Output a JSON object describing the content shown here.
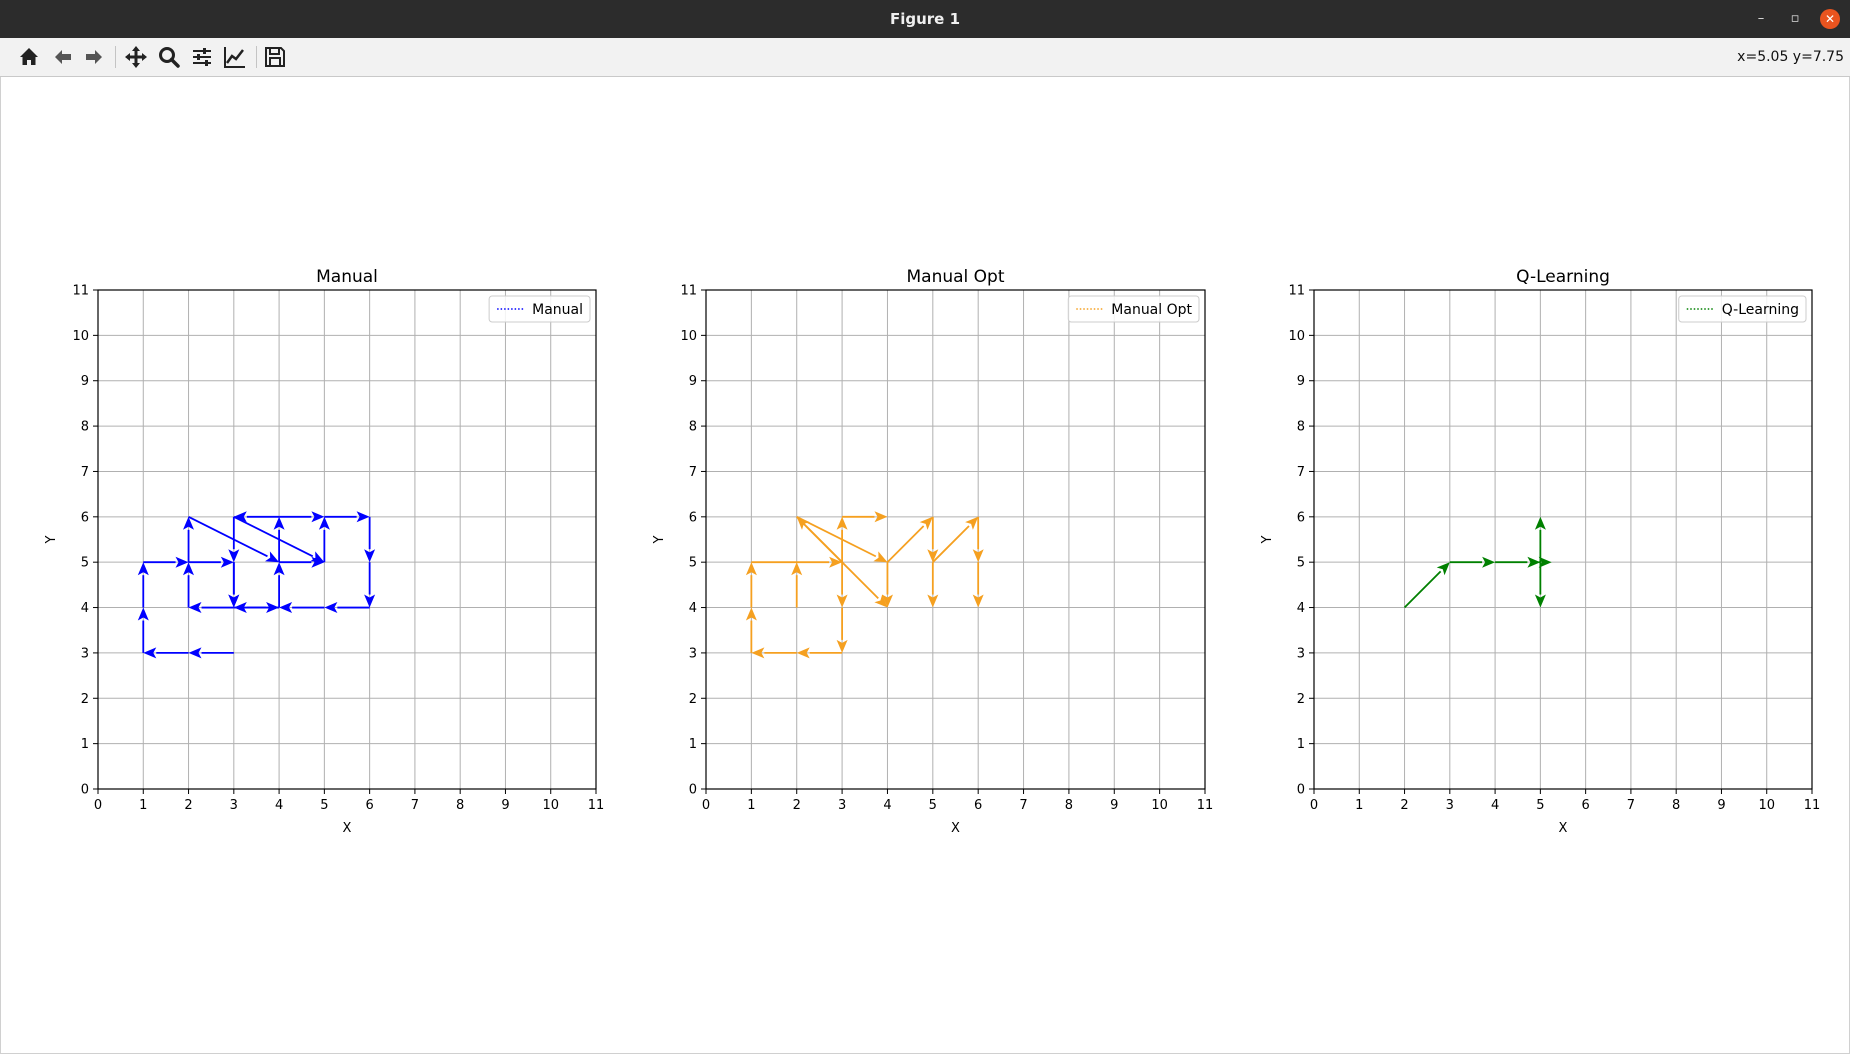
{
  "window": {
    "title": "Figure 1",
    "minimize_glyph": "–",
    "maximize_glyph": "▫",
    "close_glyph": "✕"
  },
  "toolbar": {
    "buttons": [
      "home-icon",
      "back-icon",
      "forward-icon",
      "pan-icon",
      "zoom-icon",
      "configure-subplots-icon",
      "edit-axis-icon",
      "save-icon"
    ],
    "coordinates": "x=5.05 y=7.75"
  },
  "chart_data": [
    {
      "type": "quiver",
      "title": "Manual",
      "xlabel": "X",
      "ylabel": "Y",
      "xlim": [
        0,
        11
      ],
      "ylim": [
        0,
        11
      ],
      "xticks": [
        "0",
        "1",
        "2",
        "3",
        "4",
        "5",
        "6",
        "7",
        "8",
        "9",
        "10",
        "11"
      ],
      "yticks": [
        "0",
        "1",
        "2",
        "3",
        "4",
        "5",
        "6",
        "7",
        "8",
        "9",
        "10",
        "11"
      ],
      "grid": true,
      "legend": {
        "label": "Manual",
        "position": "top-right"
      },
      "color": "#0000ff",
      "line_style": "dotted",
      "segments": [
        [
          [
            3,
            3
          ],
          [
            2,
            3
          ]
        ],
        [
          [
            2,
            3
          ],
          [
            1,
            3
          ]
        ],
        [
          [
            1,
            3
          ],
          [
            1,
            4
          ]
        ],
        [
          [
            1,
            4
          ],
          [
            1,
            5
          ]
        ],
        [
          [
            1,
            5
          ],
          [
            2,
            5
          ]
        ],
        [
          [
            2,
            5
          ],
          [
            3,
            5
          ]
        ],
        [
          [
            3,
            5
          ],
          [
            3,
            4
          ]
        ],
        [
          [
            3,
            4
          ],
          [
            2,
            4
          ]
        ],
        [
          [
            2,
            4
          ],
          [
            2,
            5
          ]
        ],
        [
          [
            2,
            5
          ],
          [
            2,
            6
          ]
        ],
        [
          [
            2,
            6
          ],
          [
            4,
            5
          ]
        ],
        [
          [
            4,
            5
          ],
          [
            4,
            6
          ]
        ],
        [
          [
            4,
            6
          ],
          [
            3,
            6
          ]
        ],
        [
          [
            3,
            6
          ],
          [
            3,
            5
          ]
        ],
        [
          [
            3,
            5
          ],
          [
            3,
            4
          ]
        ],
        [
          [
            3,
            4
          ],
          [
            4,
            4
          ]
        ],
        [
          [
            4,
            4
          ],
          [
            4,
            5
          ]
        ],
        [
          [
            4,
            5
          ],
          [
            5,
            5
          ]
        ],
        [
          [
            5,
            5
          ],
          [
            5,
            6
          ]
        ],
        [
          [
            5,
            6
          ],
          [
            6,
            6
          ]
        ],
        [
          [
            6,
            6
          ],
          [
            6,
            5
          ]
        ],
        [
          [
            6,
            5
          ],
          [
            6,
            4
          ]
        ],
        [
          [
            6,
            4
          ],
          [
            5,
            4
          ]
        ],
        [
          [
            5,
            4
          ],
          [
            4,
            4
          ]
        ],
        [
          [
            4,
            4
          ],
          [
            3,
            4
          ]
        ],
        [
          [
            3,
            6
          ],
          [
            5,
            5
          ]
        ],
        [
          [
            4,
            6
          ],
          [
            5,
            6
          ]
        ]
      ]
    },
    {
      "type": "quiver",
      "title": "Manual Opt",
      "xlabel": "X",
      "ylabel": "Y",
      "xlim": [
        0,
        11
      ],
      "ylim": [
        0,
        11
      ],
      "xticks": [
        "0",
        "1",
        "2",
        "3",
        "4",
        "5",
        "6",
        "7",
        "8",
        "9",
        "10",
        "11"
      ],
      "yticks": [
        "0",
        "1",
        "2",
        "3",
        "4",
        "5",
        "6",
        "7",
        "8",
        "9",
        "10",
        "11"
      ],
      "grid": true,
      "legend": {
        "label": "Manual Opt",
        "position": "top-right"
      },
      "color": "#f5a020",
      "line_style": "dotted",
      "segments": [
        [
          [
            3,
            3
          ],
          [
            2,
            3
          ]
        ],
        [
          [
            2,
            3
          ],
          [
            1,
            3
          ]
        ],
        [
          [
            1,
            3
          ],
          [
            1,
            4
          ]
        ],
        [
          [
            1,
            4
          ],
          [
            1,
            5
          ]
        ],
        [
          [
            2,
            4
          ],
          [
            2,
            5
          ]
        ],
        [
          [
            1,
            5
          ],
          [
            3,
            5
          ]
        ],
        [
          [
            3,
            5
          ],
          [
            3,
            4
          ]
        ],
        [
          [
            3,
            4
          ],
          [
            3,
            3
          ]
        ],
        [
          [
            3,
            5
          ],
          [
            3,
            6
          ]
        ],
        [
          [
            3,
            6
          ],
          [
            4,
            6
          ]
        ],
        [
          [
            3,
            5
          ],
          [
            2,
            6
          ]
        ],
        [
          [
            2,
            6
          ],
          [
            4,
            5
          ]
        ],
        [
          [
            2,
            6
          ],
          [
            4,
            4
          ]
        ],
        [
          [
            4,
            5
          ],
          [
            4,
            4
          ]
        ],
        [
          [
            4,
            5
          ],
          [
            5,
            6
          ]
        ],
        [
          [
            5,
            6
          ],
          [
            5,
            5
          ]
        ],
        [
          [
            5,
            5
          ],
          [
            5,
            4
          ]
        ],
        [
          [
            5,
            5
          ],
          [
            6,
            6
          ]
        ],
        [
          [
            6,
            6
          ],
          [
            6,
            5
          ]
        ],
        [
          [
            6,
            5
          ],
          [
            6,
            4
          ]
        ]
      ]
    },
    {
      "type": "quiver",
      "title": "Q-Learning",
      "xlabel": "X",
      "ylabel": "Y",
      "xlim": [
        0,
        11
      ],
      "ylim": [
        0,
        11
      ],
      "xticks": [
        "0",
        "1",
        "2",
        "3",
        "4",
        "5",
        "6",
        "7",
        "8",
        "9",
        "10",
        "11"
      ],
      "yticks": [
        "0",
        "1",
        "2",
        "3",
        "4",
        "5",
        "6",
        "7",
        "8",
        "9",
        "10",
        "11"
      ],
      "grid": true,
      "legend": {
        "label": "Q-Learning",
        "position": "top-right"
      },
      "color": "#008000",
      "line_style": "dotted",
      "segments": [
        [
          [
            2,
            4
          ],
          [
            3,
            5
          ]
        ],
        [
          [
            3,
            5
          ],
          [
            4,
            5
          ]
        ],
        [
          [
            4,
            5
          ],
          [
            5,
            5
          ]
        ],
        [
          [
            5,
            5
          ],
          [
            5,
            6
          ]
        ],
        [
          [
            5,
            5
          ],
          [
            5,
            4
          ]
        ],
        [
          [
            5,
            5
          ],
          [
            5.25,
            5
          ]
        ]
      ]
    }
  ]
}
